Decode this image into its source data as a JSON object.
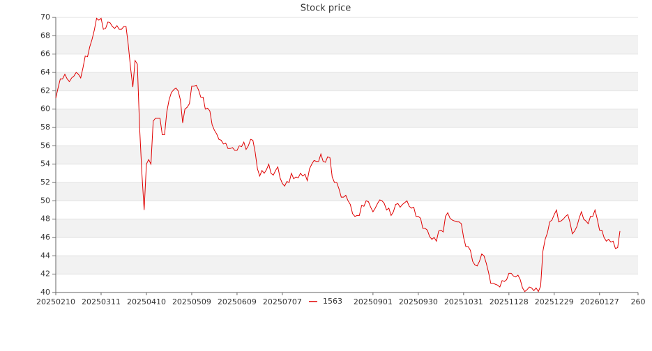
{
  "chart_data": {
    "type": "line",
    "title": "Stock price",
    "categories": [
      "20250210",
      null,
      null,
      null,
      null,
      null,
      null,
      null,
      null,
      null,
      null,
      null,
      null,
      null,
      null,
      null,
      null,
      null,
      null,
      null,
      "20250311",
      null,
      null,
      null,
      null,
      null,
      null,
      null,
      null,
      null,
      null,
      null,
      null,
      null,
      null,
      null,
      null,
      null,
      null,
      null,
      "20250410",
      null,
      null,
      null,
      null,
      null,
      null,
      null,
      null,
      null,
      null,
      null,
      null,
      null,
      null,
      null,
      null,
      null,
      null,
      null,
      "20250509",
      null,
      null,
      null,
      null,
      null,
      null,
      null,
      null,
      null,
      null,
      null,
      null,
      null,
      null,
      null,
      null,
      null,
      null,
      null,
      "20250609",
      null,
      null,
      null,
      null,
      null,
      null,
      null,
      null,
      null,
      null,
      null,
      null,
      null,
      null,
      null,
      null,
      null,
      null,
      null,
      "20250707",
      null,
      null,
      null,
      null,
      null,
      null,
      null,
      null,
      null,
      null,
      null,
      null,
      null,
      null,
      null,
      null,
      null,
      null,
      null,
      null,
      null,
      null,
      null,
      null,
      null,
      null,
      null,
      null,
      null,
      null,
      null,
      null,
      null,
      null,
      null,
      null,
      null,
      null,
      null,
      "20250901",
      null,
      null,
      null,
      null,
      null,
      null,
      null,
      null,
      null,
      null,
      null,
      null,
      null,
      null,
      null,
      null,
      null,
      null,
      null,
      "20250930",
      null,
      null,
      null,
      null,
      null,
      null,
      null,
      null,
      null,
      null,
      null,
      null,
      null,
      null,
      null,
      null,
      null,
      null,
      null,
      "20251031",
      null,
      null,
      null,
      null,
      null,
      null,
      null,
      null,
      null,
      null,
      null,
      null,
      null,
      null,
      null,
      null,
      null,
      null,
      null,
      "20251128",
      null,
      null,
      null,
      null,
      null,
      null,
      null,
      null,
      null,
      null,
      null,
      null,
      null,
      null,
      null,
      null,
      null,
      null,
      null,
      "20251229",
      null,
      null,
      null,
      null,
      null,
      null,
      null,
      null,
      null,
      null,
      null,
      null,
      null,
      null,
      null,
      null,
      null,
      null,
      null,
      "20260127",
      null,
      null,
      null,
      null,
      null,
      null,
      null,
      null,
      null,
      null,
      null,
      null,
      null,
      null,
      null,
      null,
      "260"
    ],
    "series": [
      {
        "name": "1563",
        "color": "#e00000",
        "values": [
          61.2,
          62.3,
          63.3,
          63.3,
          63.8,
          63.3,
          63.0,
          63.4,
          63.6,
          64.0,
          63.8,
          63.4,
          64.5,
          65.8,
          65.7,
          66.8,
          67.6,
          68.6,
          69.9,
          69.7,
          69.9,
          68.7,
          68.8,
          69.5,
          69.4,
          69.0,
          68.8,
          69.1,
          68.7,
          68.7,
          69.0,
          69.0,
          67.0,
          64.5,
          62.4,
          65.3,
          64.9,
          58.0,
          53.0,
          49.0,
          54.0,
          54.5,
          54.0,
          58.7,
          59.0,
          59.0,
          59.0,
          57.2,
          57.2,
          59.7,
          61.0,
          61.8,
          62.1,
          62.3,
          62.0,
          61.0,
          58.5,
          60.0,
          60.2,
          60.6,
          62.5,
          62.5,
          62.6,
          62.1,
          61.3,
          61.3,
          60.0,
          60.1,
          59.8,
          58.3,
          57.7,
          57.3,
          56.7,
          56.6,
          56.2,
          56.3,
          55.7,
          55.7,
          55.8,
          55.5,
          55.5,
          56.0,
          55.9,
          56.4,
          55.6,
          56.0,
          56.7,
          56.6,
          55.3,
          53.5,
          52.7,
          53.3,
          53.0,
          53.4,
          54.0,
          53.0,
          52.8,
          53.3,
          53.7,
          52.5,
          51.9,
          51.6,
          52.1,
          52.0,
          53.0,
          52.4,
          52.6,
          52.5,
          53.0,
          52.7,
          52.9,
          52.2,
          53.5,
          54.0,
          54.4,
          54.3,
          54.3,
          55.1,
          54.3,
          54.2,
          54.8,
          54.7,
          52.6,
          52.0,
          52.0,
          51.3,
          50.4,
          50.4,
          50.6,
          50.0,
          49.6,
          48.6,
          48.3,
          48.4,
          48.4,
          49.5,
          49.4,
          50.0,
          49.9,
          49.3,
          48.8,
          49.2,
          49.7,
          50.1,
          50.0,
          49.7,
          49.0,
          49.2,
          48.4,
          48.8,
          49.6,
          49.7,
          49.3,
          49.6,
          49.8,
          50.0,
          49.4,
          49.2,
          49.3,
          48.3,
          48.3,
          48.1,
          47.0,
          47.0,
          46.8,
          46.1,
          45.8,
          46.0,
          45.6,
          46.7,
          46.8,
          46.6,
          48.3,
          48.7,
          48.1,
          47.9,
          47.8,
          47.7,
          47.7,
          47.5,
          46.0,
          45.0,
          45.0,
          44.6,
          43.4,
          43.0,
          42.9,
          43.4,
          44.2,
          44.0,
          43.2,
          42.2,
          41.0,
          41.0,
          40.9,
          40.8,
          40.6,
          41.3,
          41.2,
          41.4,
          42.1,
          42.1,
          41.8,
          41.7,
          41.9,
          41.4,
          40.5,
          40.1,
          40.3,
          40.6,
          40.5,
          40.2,
          40.5,
          40.1,
          40.7,
          44.5,
          45.8,
          46.5,
          47.7,
          47.9,
          48.5,
          49.0,
          47.7,
          47.8,
          48.0,
          48.3,
          48.5,
          47.6,
          46.4,
          46.7,
          47.2,
          48.1,
          48.8,
          48.0,
          47.8,
          47.5,
          48.3,
          48.3,
          49.0,
          48.0,
          46.8,
          46.8,
          46.0,
          45.6,
          45.8,
          45.5,
          45.6,
          44.8,
          44.9,
          46.7,
          null,
          null,
          null,
          null,
          null,
          null,
          null,
          null
        ]
      }
    ],
    "ylim": [
      40,
      70
    ],
    "yticks": [
      40,
      42,
      44,
      46,
      48,
      50,
      52,
      54,
      56,
      58,
      60,
      62,
      64,
      66,
      68,
      70
    ],
    "grid": true,
    "legend": "bottom"
  }
}
